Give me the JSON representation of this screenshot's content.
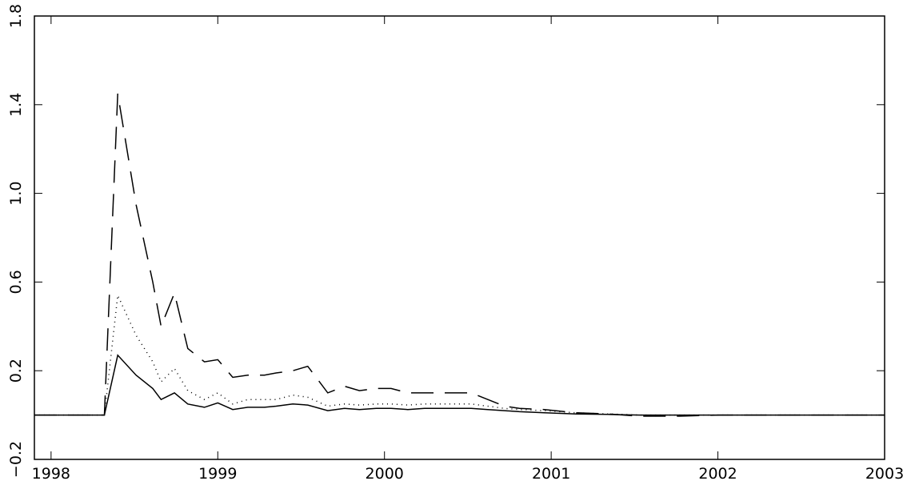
{
  "chart_data": {
    "type": "line",
    "x": [
      1997.9,
      1998.32,
      1998.4,
      1998.51,
      1998.61,
      1998.66,
      1998.74,
      1998.82,
      1998.92,
      1999.0,
      1999.09,
      1999.18,
      1999.28,
      1999.35,
      1999.45,
      1999.54,
      1999.66,
      1999.76,
      1999.85,
      1999.95,
      2000.04,
      2000.14,
      2000.24,
      2000.33,
      2000.43,
      2000.52,
      2000.62,
      2000.72,
      2000.81,
      2000.96,
      2001.15,
      2001.34,
      2001.53,
      2001.77,
      2002.01,
      2003
    ],
    "series": [
      {
        "color": "#000000",
        "dash": "none",
        "values": [
          0,
          0,
          0.27,
          0.18,
          0.12,
          0.07,
          0.1,
          0.05,
          0.035,
          0.055,
          0.025,
          0.035,
          0.035,
          0.04,
          0.05,
          0.045,
          0.02,
          0.03,
          0.025,
          0.03,
          0.03,
          0.025,
          0.03,
          0.03,
          0.03,
          0.03,
          0.025,
          0.02,
          0.015,
          0.01,
          0.005,
          0.003,
          0,
          0,
          0,
          0
        ]
      },
      {
        "color": "#000000",
        "dash": "1 5",
        "values": [
          0,
          0,
          0.54,
          0.36,
          0.24,
          0.15,
          0.21,
          0.11,
          0.07,
          0.1,
          0.05,
          0.07,
          0.07,
          0.07,
          0.09,
          0.08,
          0.04,
          0.05,
          0.045,
          0.05,
          0.05,
          0.045,
          0.05,
          0.05,
          0.05,
          0.05,
          0.04,
          0.03,
          0.025,
          0.02,
          0.01,
          0.005,
          0,
          0,
          0,
          0
        ]
      },
      {
        "color": "#000000",
        "dash": "28 14",
        "values": [
          0,
          0,
          1.45,
          0.95,
          0.6,
          0.4,
          0.55,
          0.3,
          0.24,
          0.25,
          0.17,
          0.18,
          0.18,
          0.19,
          0.2,
          0.22,
          0.1,
          0.13,
          0.11,
          0.12,
          0.12,
          0.1,
          0.1,
          0.1,
          0.1,
          0.1,
          0.07,
          0.04,
          0.03,
          0.025,
          0.01,
          0.005,
          -0.005,
          -0.005,
          0,
          0
        ]
      }
    ],
    "xlim": [
      1997.9,
      2003
    ],
    "xticks": [
      1998,
      1999,
      2000,
      2001,
      2002,
      2003
    ],
    "ylim": [
      -0.2,
      1.8
    ],
    "yticks": [
      {
        "value": -0.2,
        "label": "−0.2"
      },
      0.2,
      0.6,
      {
        "value": 1,
        "label": "1.0"
      },
      1.4,
      1.8
    ]
  }
}
